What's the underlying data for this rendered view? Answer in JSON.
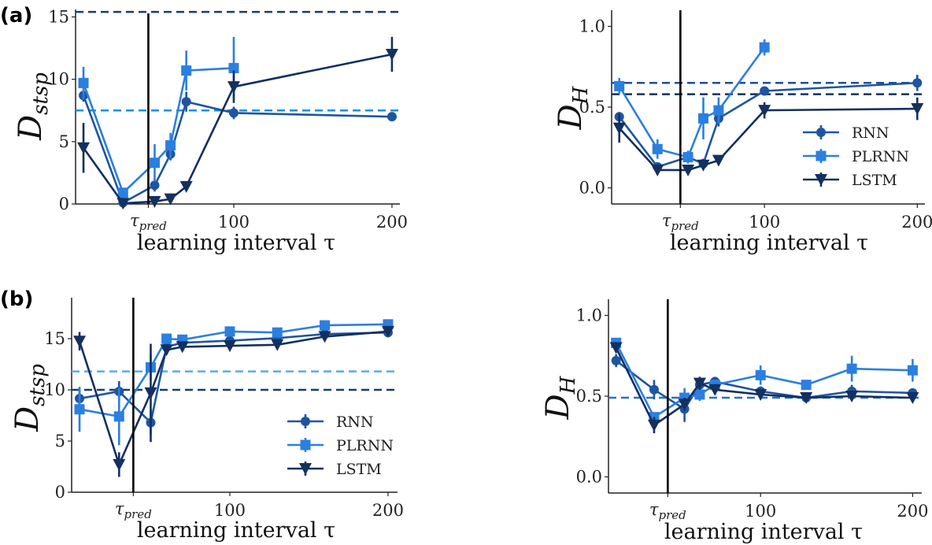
{
  "colors": {
    "RNN": "#1f55a0",
    "PLRNN": "#2b7fe0",
    "LSTM": "#13305f",
    "vline": "#000000"
  },
  "chart_data": [
    {
      "id": "a_left",
      "panel_label": "(a)",
      "type": "line",
      "ylabel": "D",
      "ylabel_sub": "stsp",
      "xlabel": "learning interval τ",
      "xlim": [
        0,
        205
      ],
      "ylim": [
        0,
        15.6
      ],
      "yticks": [
        {
          "v": 0,
          "t": "0"
        },
        {
          "v": 5,
          "t": "5"
        },
        {
          "v": 10,
          "t": "10"
        },
        {
          "v": 15,
          "t": "15"
        }
      ],
      "xticks": [
        {
          "v": 100,
          "t": "100"
        },
        {
          "v": 200,
          "t": "200"
        }
      ],
      "tau_pred": {
        "value": 46,
        "label": "τ",
        "sub": "pred"
      },
      "hlines": [
        {
          "y": 15.4,
          "color": "#153f70"
        },
        {
          "y": 7.5,
          "color": "#1a8fe0"
        }
      ],
      "series": [
        {
          "name": "RNN",
          "marker": "circle",
          "x": [
            5,
            30,
            50,
            60,
            70,
            100,
            200
          ],
          "y": [
            8.7,
            0.1,
            1.5,
            4.0,
            8.2,
            7.3,
            7.0
          ],
          "err": [
            0.5,
            0.1,
            0.5,
            0.5,
            0.8,
            0.5,
            0.1
          ]
        },
        {
          "name": "PLRNN",
          "marker": "square",
          "x": [
            5,
            30,
            50,
            60,
            70,
            100
          ],
          "y": [
            9.7,
            0.9,
            3.3,
            4.7,
            10.7,
            10.9
          ],
          "err": [
            1.3,
            0.2,
            1.5,
            1.0,
            1.6,
            2.5
          ]
        },
        {
          "name": "LSTM",
          "marker": "triangle",
          "x": [
            5,
            30,
            50,
            60,
            70,
            100,
            200
          ],
          "y": [
            4.5,
            0.05,
            0.2,
            0.4,
            1.4,
            9.4,
            12.0
          ],
          "err": [
            2.0,
            0.1,
            0.1,
            0.1,
            0.2,
            1.3,
            1.4
          ]
        }
      ],
      "legend": null
    },
    {
      "id": "a_right",
      "panel_label": "",
      "type": "line",
      "ylabel": "D",
      "ylabel_sub": "H",
      "xlabel": "learning interval τ",
      "xlim": [
        0,
        205
      ],
      "ylim": [
        -0.1,
        1.1
      ],
      "yticks": [
        {
          "v": 0,
          "t": "0.0"
        },
        {
          "v": 0.5,
          "t": "0.5"
        },
        {
          "v": 1,
          "t": "1.0"
        }
      ],
      "xticks": [
        {
          "v": 100,
          "t": "100"
        },
        {
          "v": 200,
          "t": "200"
        }
      ],
      "tau_pred": {
        "value": 45,
        "label": "τ",
        "sub": "pred"
      },
      "hlines": [
        {
          "y": 0.65,
          "color": "#1f4f95"
        },
        {
          "y": 0.58,
          "color": "#13305f"
        }
      ],
      "series": [
        {
          "name": "RNN",
          "marker": "circle",
          "x": [
            5,
            30,
            50,
            60,
            70,
            100,
            200
          ],
          "y": [
            0.44,
            0.13,
            0.19,
            0.15,
            0.43,
            0.6,
            0.65
          ],
          "err": [
            0.03,
            0.02,
            0.03,
            0.03,
            0.05,
            0.02,
            0.05
          ]
        },
        {
          "name": "PLRNN",
          "marker": "square",
          "x": [
            5,
            30,
            50,
            60,
            70,
            100
          ],
          "y": [
            0.63,
            0.24,
            0.19,
            0.43,
            0.48,
            0.87
          ],
          "err": [
            0.05,
            0.06,
            0.04,
            0.13,
            0.08,
            0.05
          ]
        },
        {
          "name": "LSTM",
          "marker": "triangle",
          "x": [
            5,
            30,
            50,
            60,
            70,
            100,
            200
          ],
          "y": [
            0.37,
            0.11,
            0.11,
            0.14,
            0.17,
            0.48,
            0.49
          ],
          "err": [
            0.09,
            0.02,
            0.02,
            0.02,
            0.02,
            0.05,
            0.07
          ]
        }
      ],
      "legend": "center-right"
    },
    {
      "id": "b_left",
      "panel_label": "(b)",
      "type": "line",
      "ylabel": "D",
      "ylabel_sub": "stsp",
      "xlabel": "learning interval τ",
      "xlim": [
        0,
        206
      ],
      "ylim": [
        0,
        19
      ],
      "yticks": [
        {
          "v": 0,
          "t": "0"
        },
        {
          "v": 5,
          "t": "5"
        },
        {
          "v": 10,
          "t": "10"
        },
        {
          "v": 15,
          "t": "15"
        }
      ],
      "xticks": [
        {
          "v": 100,
          "t": "100"
        },
        {
          "v": 200,
          "t": "200"
        }
      ],
      "tau_pred": {
        "value": 39,
        "label": "τ",
        "sub": "pred"
      },
      "hlines": [
        {
          "y": 11.8,
          "color": "#5aaaf0"
        },
        {
          "y": 10.0,
          "color": "#153f70"
        }
      ],
      "series": [
        {
          "name": "RNN",
          "marker": "circle",
          "x": [
            5,
            30,
            50,
            60,
            70,
            100,
            130,
            160,
            200
          ],
          "y": [
            9.15,
            9.85,
            6.8,
            14.2,
            14.6,
            14.8,
            15.05,
            15.45,
            15.6
          ],
          "err": [
            1.0,
            1.0,
            1.2,
            0.3,
            0.3,
            0.2,
            0.2,
            0.2,
            0.2
          ]
        },
        {
          "name": "PLRNN",
          "marker": "square",
          "x": [
            5,
            30,
            50,
            60,
            70,
            100,
            130,
            160,
            200
          ],
          "y": [
            8.1,
            7.4,
            12.2,
            15.0,
            14.9,
            15.7,
            15.6,
            16.3,
            16.4
          ],
          "err": [
            2.2,
            2.8,
            1.2,
            0.3,
            0.2,
            0.2,
            0.2,
            0.2,
            0.2
          ]
        },
        {
          "name": "LSTM",
          "marker": "triangle",
          "x": [
            5,
            30,
            50,
            60,
            70,
            100,
            130,
            160,
            200
          ],
          "y": [
            14.75,
            2.7,
            9.7,
            13.9,
            14.2,
            14.3,
            14.4,
            15.2,
            15.7
          ],
          "err": [
            0.9,
            1.2,
            4.8,
            0.3,
            0.3,
            0.2,
            0.2,
            0.2,
            0.2
          ]
        }
      ],
      "legend": "lower-right"
    },
    {
      "id": "b_right",
      "panel_label": "",
      "type": "line",
      "ylabel": "D",
      "ylabel_sub": "H",
      "xlabel": "learning interval τ",
      "xlim": [
        0,
        206
      ],
      "ylim": [
        -0.1,
        1.1
      ],
      "yticks": [
        {
          "v": 0,
          "t": "0.0"
        },
        {
          "v": 0.5,
          "t": "0.5"
        },
        {
          "v": 1,
          "t": "1.0"
        }
      ],
      "xticks": [
        {
          "v": 100,
          "t": "100"
        },
        {
          "v": 200,
          "t": "200"
        }
      ],
      "tau_pred": {
        "value": 39,
        "label": "τ",
        "sub": "pred"
      },
      "hlines": [
        {
          "y": 0.49,
          "color": "#2a6fd0"
        }
      ],
      "series": [
        {
          "name": "RNN",
          "marker": "circle",
          "x": [
            5,
            30,
            50,
            60,
            70,
            100,
            130,
            160,
            200
          ],
          "y": [
            0.72,
            0.54,
            0.42,
            0.57,
            0.59,
            0.53,
            0.49,
            0.53,
            0.52
          ],
          "err": [
            0.04,
            0.06,
            0.08,
            0.03,
            0.03,
            0.03,
            0.02,
            0.04,
            0.02
          ]
        },
        {
          "name": "PLRNN",
          "marker": "square",
          "x": [
            5,
            30,
            50,
            60,
            70,
            100,
            130,
            160,
            200
          ],
          "y": [
            0.83,
            0.37,
            0.49,
            0.51,
            0.57,
            0.63,
            0.57,
            0.67,
            0.66
          ],
          "err": [
            0.03,
            0.03,
            0.06,
            0.04,
            0.03,
            0.06,
            0.02,
            0.08,
            0.07
          ]
        },
        {
          "name": "LSTM",
          "marker": "triangle",
          "x": [
            5,
            30,
            50,
            60,
            70,
            100,
            130,
            160,
            200
          ],
          "y": [
            0.8,
            0.32,
            0.45,
            0.58,
            0.54,
            0.51,
            0.49,
            0.5,
            0.49
          ],
          "err": [
            0.03,
            0.05,
            0.04,
            0.04,
            0.03,
            0.03,
            0.02,
            0.03,
            0.02
          ]
        }
      ],
      "legend": null
    }
  ]
}
